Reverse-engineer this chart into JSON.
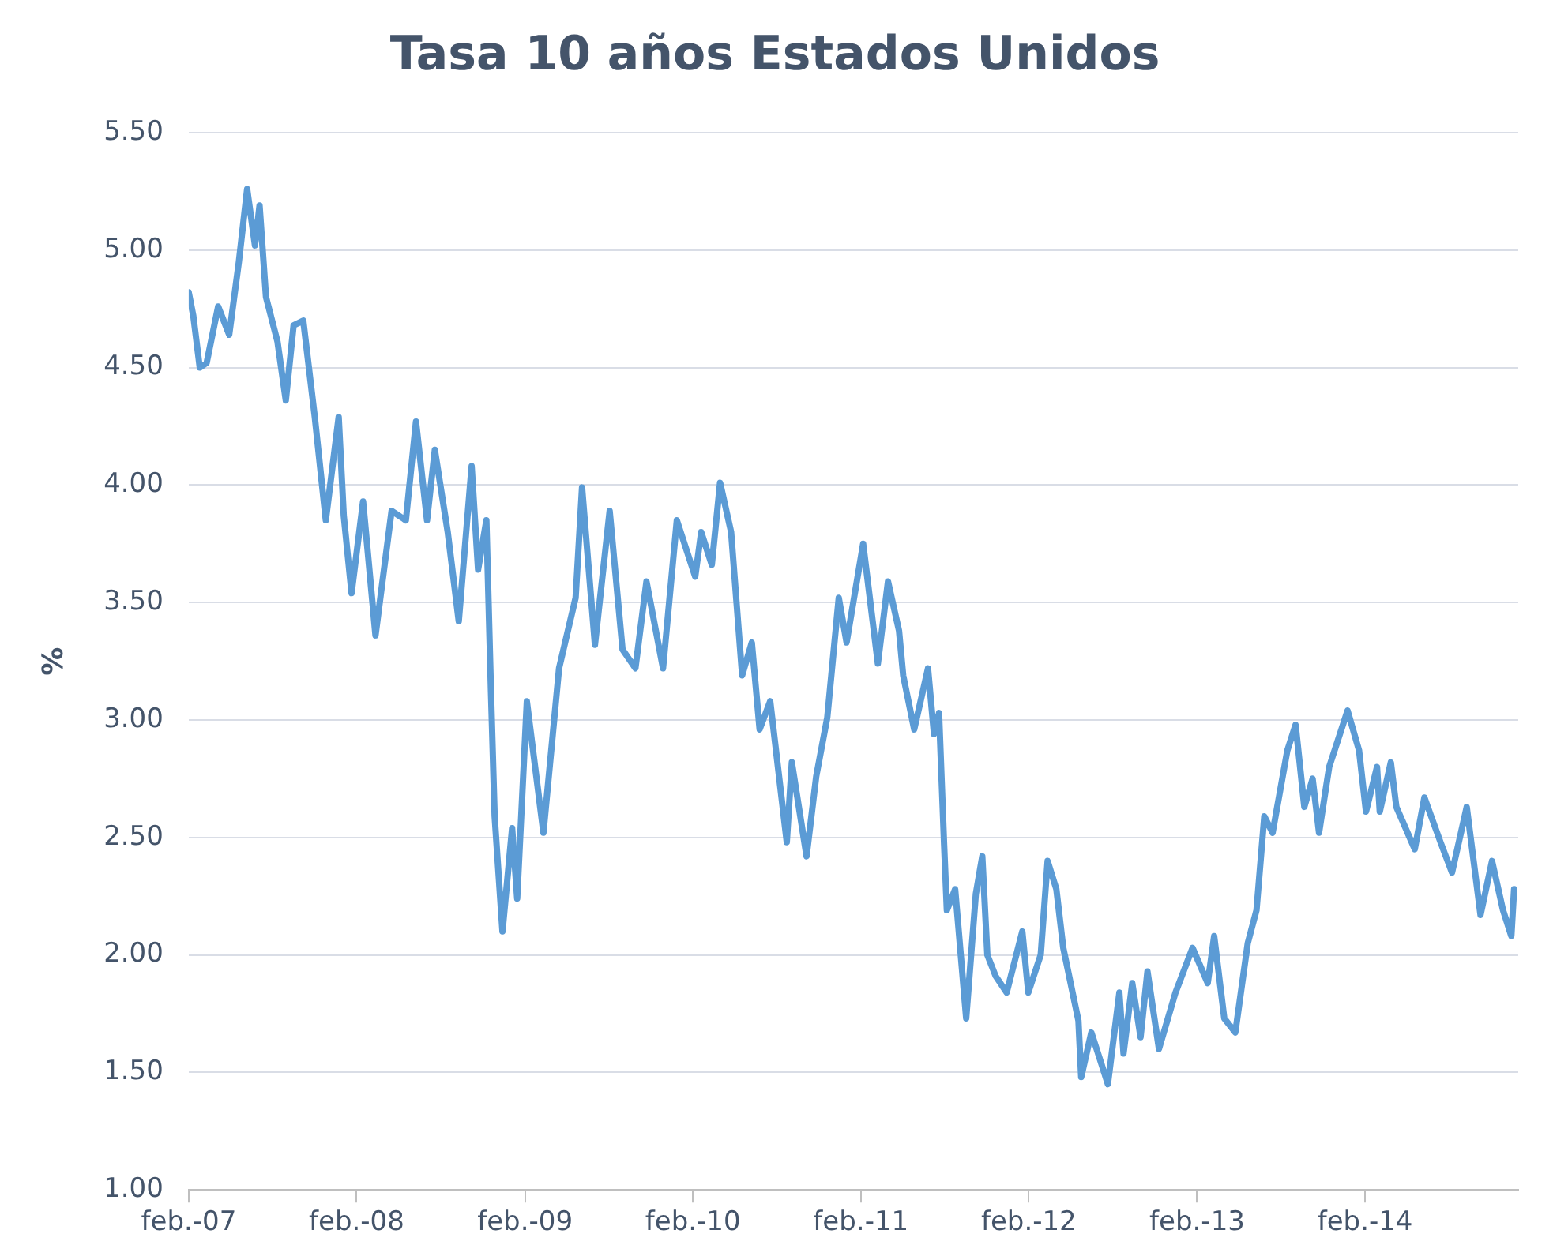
{
  "chart_data": {
    "type": "line",
    "title": "Tasa 10 años Estados Unidos",
    "ylabel": "%",
    "x": [
      "2007-02-01",
      "2007-02-11",
      "2007-02-25",
      "2007-03-12",
      "2007-04-06",
      "2007-04-30",
      "2007-05-21",
      "2007-06-08",
      "2007-06-25",
      "2007-07-05",
      "2007-07-19",
      "2007-08-13",
      "2007-08-31",
      "2007-09-17",
      "2007-10-08",
      "2007-11-02",
      "2007-11-26",
      "2007-12-24",
      "2008-01-04",
      "2008-01-21",
      "2008-02-15",
      "2008-03-13",
      "2008-04-17",
      "2008-05-18",
      "2008-06-09",
      "2008-07-03",
      "2008-07-20",
      "2008-08-17",
      "2008-09-10",
      "2008-10-08",
      "2008-10-22",
      "2008-11-09",
      "2008-11-19",
      "2008-11-27",
      "2008-12-14",
      "2009-01-04",
      "2009-01-15",
      "2009-02-05",
      "2009-03-13",
      "2009-04-16",
      "2009-05-22",
      "2009-06-05",
      "2009-07-03",
      "2009-08-04",
      "2009-09-01",
      "2009-09-29",
      "2009-10-23",
      "2009-11-28",
      "2009-12-28",
      "2010-02-06",
      "2010-02-19",
      "2010-03-14",
      "2010-04-01",
      "2010-04-25",
      "2010-05-19",
      "2010-06-09",
      "2010-06-26",
      "2010-07-19",
      "2010-08-24",
      "2010-09-04",
      "2010-10-06",
      "2010-10-27",
      "2010-11-20",
      "2010-12-15",
      "2011-01-01",
      "2011-02-06",
      "2011-03-10",
      "2011-04-01",
      "2011-04-25",
      "2011-05-04",
      "2011-05-28",
      "2011-06-27",
      "2011-07-10",
      "2011-07-21",
      "2011-08-01",
      "2011-08-07",
      "2011-08-25",
      "2011-09-18",
      "2011-10-09",
      "2011-10-23",
      "2011-11-03",
      "2011-11-21",
      "2011-12-15",
      "2012-01-18",
      "2012-01-31",
      "2012-02-27",
      "2012-03-13",
      "2012-04-01",
      "2012-04-16",
      "2012-05-19",
      "2012-05-25",
      "2012-06-16",
      "2012-07-22",
      "2012-08-16",
      "2012-08-25",
      "2012-09-13",
      "2012-10-01",
      "2012-10-16",
      "2012-11-10",
      "2012-12-16",
      "2013-01-22",
      "2013-02-24",
      "2013-03-10",
      "2013-04-01",
      "2013-04-25",
      "2013-05-22",
      "2013-06-10",
      "2013-06-27",
      "2013-07-15",
      "2013-08-16",
      "2013-09-03",
      "2013-09-22",
      "2013-10-10",
      "2013-10-24",
      "2013-11-15",
      "2013-12-25",
      "2014-01-19",
      "2014-02-03",
      "2014-02-27",
      "2014-03-05",
      "2014-03-29",
      "2014-04-10",
      "2014-05-20",
      "2014-06-10",
      "2014-07-15",
      "2014-08-09",
      "2014-09-10",
      "2014-10-10",
      "2014-11-04",
      "2014-11-28",
      "2014-12-16",
      "2014-12-22"
    ],
    "series": [
      {
        "color": "#5b9bd5",
        "values": [
          4.82,
          4.72,
          4.5,
          4.52,
          4.76,
          4.64,
          4.95,
          5.26,
          5.02,
          5.19,
          4.8,
          4.61,
          4.36,
          4.68,
          4.7,
          4.29,
          3.85,
          4.29,
          3.87,
          3.54,
          3.93,
          3.36,
          3.89,
          3.85,
          4.27,
          3.85,
          4.15,
          3.8,
          3.42,
          4.08,
          3.64,
          3.85,
          3.12,
          2.59,
          2.1,
          2.54,
          2.24,
          3.08,
          2.52,
          3.22,
          3.52,
          3.99,
          3.32,
          3.89,
          3.3,
          3.22,
          3.59,
          3.22,
          3.85,
          3.61,
          3.8,
          3.66,
          4.01,
          3.8,
          3.19,
          3.33,
          2.96,
          3.08,
          2.48,
          2.82,
          2.42,
          2.76,
          3.01,
          3.52,
          3.33,
          3.75,
          3.24,
          3.59,
          3.38,
          3.19,
          2.96,
          3.22,
          2.94,
          3.03,
          2.47,
          2.19,
          2.28,
          1.73,
          2.26,
          2.42,
          2.0,
          1.91,
          1.84,
          2.1,
          1.84,
          2.0,
          2.4,
          2.28,
          2.03,
          1.72,
          1.48,
          1.67,
          1.45,
          1.84,
          1.58,
          1.88,
          1.65,
          1.93,
          1.6,
          1.84,
          2.03,
          1.88,
          2.08,
          1.73,
          1.67,
          2.05,
          2.19,
          2.59,
          2.52,
          2.87,
          2.98,
          2.63,
          2.75,
          2.52,
          2.8,
          3.04,
          2.87,
          2.61,
          2.8,
          2.61,
          2.82,
          2.63,
          2.45,
          2.67,
          2.48,
          2.35,
          2.63,
          2.17,
          2.4,
          2.19,
          2.08,
          2.28
        ]
      }
    ],
    "xlim": [
      "2007-02-01",
      "2014-12-31"
    ],
    "xticks": [
      {
        "value": "2007-02-01",
        "label": "feb.-07"
      },
      {
        "value": "2008-02-01",
        "label": "feb.-08"
      },
      {
        "value": "2009-02-01",
        "label": "feb.-09"
      },
      {
        "value": "2010-02-01",
        "label": "feb.-10"
      },
      {
        "value": "2011-02-01",
        "label": "feb.-11"
      },
      {
        "value": "2012-02-01",
        "label": "feb.-12"
      },
      {
        "value": "2013-02-01",
        "label": "feb.-13"
      },
      {
        "value": "2014-02-01",
        "label": "feb.-14"
      }
    ],
    "ylim": [
      1,
      5.5
    ],
    "yticks": [
      {
        "value": 1,
        "label": "1.00"
      },
      {
        "value": 1.5,
        "label": "1.50"
      },
      {
        "value": 2,
        "label": "2.00"
      },
      {
        "value": 2.5,
        "label": "2.50"
      },
      {
        "value": 3,
        "label": "3.00"
      },
      {
        "value": 3.5,
        "label": "3.50"
      },
      {
        "value": 4,
        "label": "4.00"
      },
      {
        "value": 4.5,
        "label": "4.50"
      },
      {
        "value": 5,
        "label": "5.00"
      },
      {
        "value": 5.5,
        "label": "5.50"
      }
    ],
    "grid": "y",
    "legend": false,
    "marker": "none",
    "line_style": "solid"
  }
}
